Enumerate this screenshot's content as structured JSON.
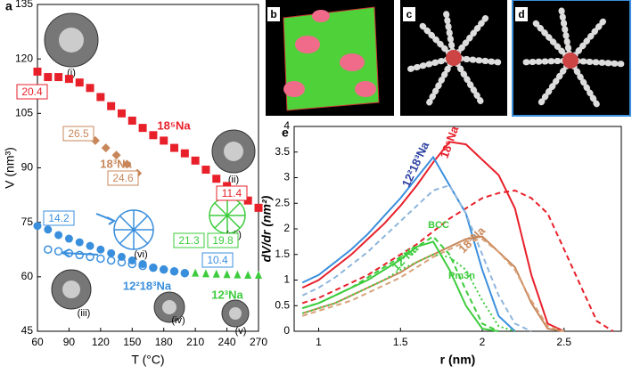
{
  "panels": {
    "a": "a",
    "b": "b",
    "c": "c",
    "d": "d",
    "e": "e"
  },
  "insets": [
    "(i)",
    "(ii)",
    "(iii)",
    "(iv)",
    "(v)",
    "(vi)",
    "(vii)"
  ],
  "chart_data": [
    {
      "type": "scatter",
      "xlabel": "T (°C)",
      "ylabel": "V (nm³)",
      "xlim": [
        60,
        270
      ],
      "ylim": [
        45,
        135
      ],
      "xticks": [
        60,
        90,
        120,
        150,
        180,
        210,
        240,
        270
      ],
      "yticks": [
        45,
        60,
        75,
        90,
        105,
        120,
        135
      ],
      "series": [
        {
          "name": "18⁵Na",
          "color": "#e8202a",
          "marker": "square",
          "x": [
            60,
            70,
            80,
            90,
            100,
            110,
            120,
            130,
            140,
            150,
            160,
            170,
            180,
            190,
            200,
            210,
            220,
            230,
            240,
            250,
            260,
            270
          ],
          "values": [
            116.5,
            115,
            115,
            114.5,
            113.5,
            112,
            109.5,
            107,
            105,
            103,
            101,
            99,
            97.5,
            95.5,
            94,
            92,
            89.5,
            87,
            85,
            83,
            81,
            79
          ]
        },
        {
          "name": "18³Na",
          "color": "#c8875a",
          "marker": "diamond",
          "x": [
            105,
            115,
            125,
            135,
            145,
            155
          ],
          "values": [
            99.5,
            97.5,
            95.5,
            93.5,
            91,
            88.5
          ]
        },
        {
          "name": "12²18³Na",
          "color": "#3a8fdd",
          "marker": "circle",
          "x": [
            60,
            70,
            80,
            90,
            100,
            110,
            120,
            130,
            140,
            150,
            160,
            170,
            180,
            190,
            200
          ],
          "values": [
            74,
            73,
            71.5,
            70.5,
            69.5,
            68.5,
            67.5,
            66.5,
            65.5,
            64.5,
            63.5,
            62.5,
            62,
            61.5,
            61
          ]
        },
        {
          "color": "#3a8fdd",
          "marker": "open-circle",
          "x": [
            70,
            80,
            90,
            100,
            110,
            120,
            130,
            140,
            150,
            160,
            170,
            180,
            190,
            200
          ],
          "values": [
            67.5,
            67,
            66.5,
            66,
            65.5,
            65,
            64.5,
            64,
            63.5,
            63,
            62.5,
            62,
            61.5,
            61
          ]
        },
        {
          "name": "12³Na",
          "color": "#3dcc3d",
          "marker": "triangle",
          "x": [
            210,
            220,
            230,
            240,
            250,
            260,
            270
          ],
          "values": [
            60.8,
            60.6,
            60.5,
            60.4,
            60.3,
            60.2,
            60.2
          ]
        }
      ],
      "annotations": [
        {
          "text": "20.4",
          "color": "#e8202a"
        },
        {
          "text": "26.5",
          "color": "#c8875a"
        },
        {
          "text": "24.6",
          "color": "#c8875a"
        },
        {
          "text": "11.4",
          "color": "#e8202a"
        },
        {
          "text": "14.2",
          "color": "#3a8fdd"
        },
        {
          "text": "10.4",
          "color": "#3a8fdd"
        },
        {
          "text": "21.3",
          "color": "#3dcc3d"
        },
        {
          "text": "19.8",
          "color": "#3dcc3d"
        }
      ]
    },
    {
      "type": "line",
      "xlabel": "r (nm)",
      "ylabel": "dV/dr (nm²)",
      "xlim": [
        0.85,
        2.85
      ],
      "ylim": [
        0,
        4
      ],
      "xticks": [
        1,
        1.5,
        2,
        2.5
      ],
      "yticks": [
        0,
        0.5,
        1,
        1.5,
        2,
        2.5,
        3,
        3.5,
        4
      ],
      "x": [
        0.9,
        1.0,
        1.1,
        1.2,
        1.3,
        1.4,
        1.5,
        1.6,
        1.7,
        1.8,
        1.9,
        2.0,
        2.1,
        2.2,
        2.3,
        2.4,
        2.5,
        2.6,
        2.7,
        2.8
      ],
      "series": [
        {
          "name": "18⁵Na",
          "color": "#e8202a",
          "dash": "solid",
          "values": [
            0.85,
            1.0,
            1.25,
            1.5,
            1.8,
            2.1,
            2.45,
            2.85,
            3.3,
            3.7,
            3.65,
            3.35,
            3.05,
            2.4,
            1.1,
            0.15,
            0,
            null,
            null,
            null
          ]
        },
        {
          "color": "#e8202a",
          "dash": "dashed",
          "values": [
            0.55,
            0.65,
            0.8,
            0.95,
            1.1,
            1.3,
            1.5,
            1.7,
            1.95,
            2.2,
            2.4,
            2.6,
            2.7,
            2.75,
            2.6,
            2.3,
            1.6,
            0.9,
            0.2,
            0
          ]
        },
        {
          "name": "12²18³Na",
          "color": "#3a8fdd",
          "dash": "solid",
          "values": [
            0.95,
            1.1,
            1.35,
            1.6,
            1.9,
            2.25,
            2.6,
            3.0,
            3.4,
            2.85,
            2.3,
            1.2,
            0.3,
            0,
            null,
            null,
            null,
            null,
            null,
            null
          ]
        },
        {
          "color": "#8fb6dd",
          "dash": "dashed",
          "values": [
            0.7,
            0.85,
            1.05,
            1.3,
            1.55,
            1.85,
            2.15,
            2.45,
            2.75,
            2.85,
            2.3,
            1.5,
            0.7,
            0.15,
            0,
            null,
            null,
            null,
            null,
            null
          ]
        },
        {
          "name": "18³Na",
          "color": "#c8875a",
          "dash": "solid",
          "values": [
            0.35,
            0.45,
            0.55,
            0.7,
            0.85,
            1.0,
            1.15,
            1.35,
            1.5,
            1.65,
            1.8,
            1.85,
            1.55,
            1.25,
            0.55,
            0.05,
            0,
            null,
            null,
            null
          ]
        },
        {
          "color": "#d9a27a",
          "dash": "dashed",
          "values": [
            0.3,
            0.4,
            0.5,
            0.6,
            0.75,
            0.9,
            1.05,
            1.25,
            1.45,
            1.6,
            1.75,
            1.8,
            1.55,
            1.2,
            0.6,
            0.1,
            0,
            null,
            null,
            null
          ]
        },
        {
          "name": "12³Na",
          "color": "#3dcc3d",
          "dash": "solid",
          "values": [
            0.45,
            0.55,
            0.7,
            0.85,
            1.0,
            1.2,
            1.4,
            1.65,
            1.75,
            1.2,
            0.5,
            0.05,
            0,
            null,
            null,
            null,
            null,
            null,
            null,
            null
          ]
        },
        {
          "name": "BCC",
          "color": "#3dcc3d",
          "dash": "dashed",
          "values": [
            0.45,
            0.55,
            0.7,
            0.85,
            1.05,
            1.25,
            1.45,
            1.65,
            1.85,
            1.5,
            0.8,
            0.15,
            0,
            null,
            null,
            null,
            null,
            null,
            null,
            null
          ]
        },
        {
          "name": "Pm3n",
          "color": "#3dcc3d",
          "dash": "dotted",
          "values": [
            0.35,
            0.45,
            0.55,
            0.7,
            0.85,
            1.0,
            1.2,
            1.35,
            1.5,
            1.45,
            1.2,
            0.6,
            0.1,
            0,
            null,
            null,
            null,
            null,
            null,
            null
          ]
        }
      ]
    }
  ]
}
